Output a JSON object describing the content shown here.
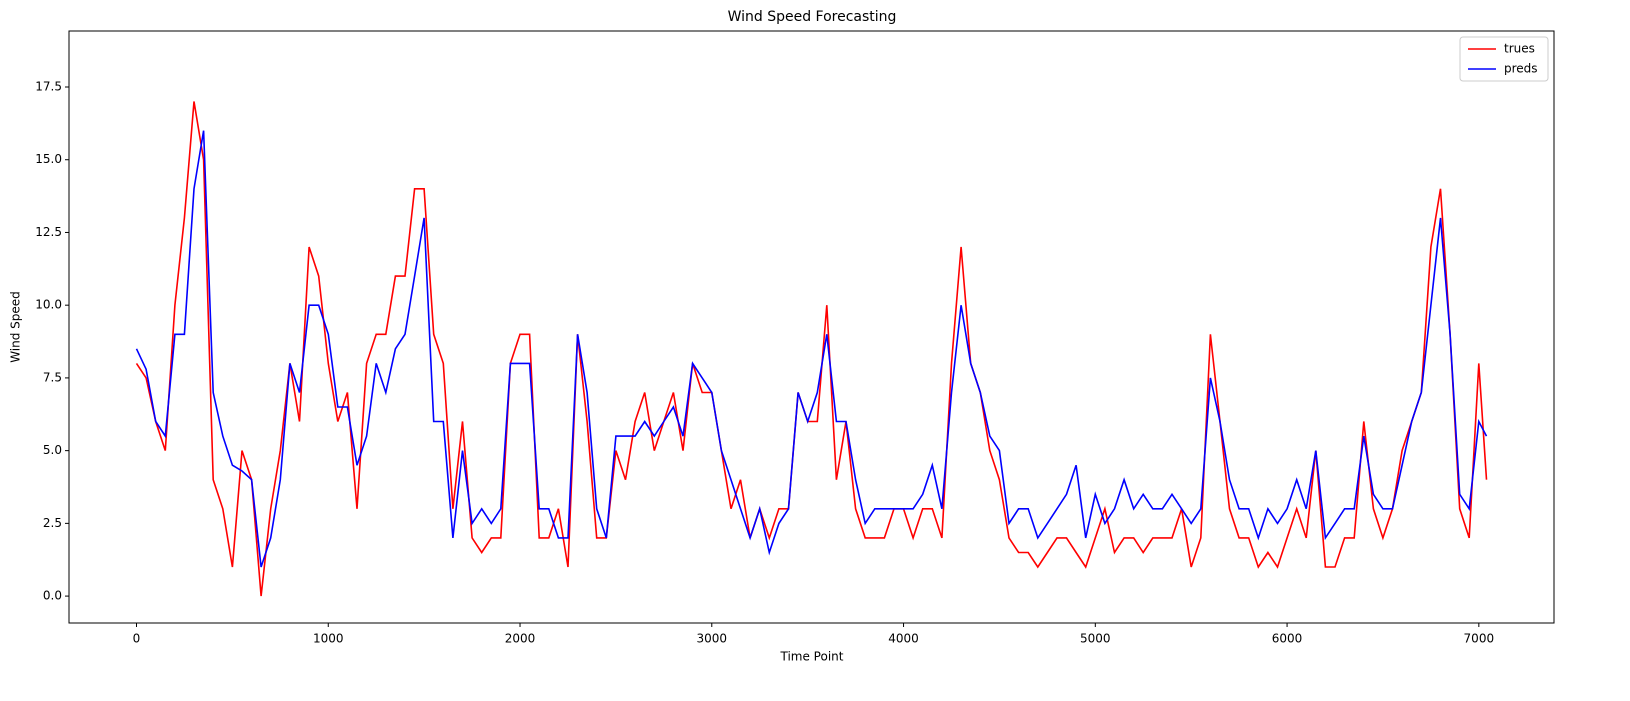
{
  "chart_data": {
    "type": "line",
    "title": "Wind Speed Forecasting",
    "xlabel": "Time Point",
    "ylabel": "Wind Speed",
    "x": [
      0,
      50,
      100,
      150,
      200,
      250,
      300,
      350,
      400,
      450,
      500,
      550,
      600,
      650,
      700,
      750,
      800,
      850,
      900,
      950,
      1000,
      1050,
      1100,
      1150,
      1200,
      1250,
      1300,
      1350,
      1400,
      1450,
      1500,
      1550,
      1600,
      1650,
      1700,
      1750,
      1800,
      1850,
      1900,
      1950,
      2000,
      2050,
      2100,
      2150,
      2200,
      2250,
      2300,
      2350,
      2400,
      2450,
      2500,
      2550,
      2600,
      2650,
      2700,
      2750,
      2800,
      2850,
      2900,
      2950,
      3000,
      3050,
      3100,
      3150,
      3200,
      3250,
      3300,
      3350,
      3400,
      3450,
      3500,
      3550,
      3600,
      3650,
      3700,
      3750,
      3800,
      3850,
      3900,
      3950,
      4000,
      4050,
      4100,
      4150,
      4200,
      4250,
      4300,
      4350,
      4400,
      4450,
      4500,
      4550,
      4600,
      4650,
      4700,
      4750,
      4800,
      4850,
      4900,
      4950,
      5000,
      5050,
      5100,
      5150,
      5200,
      5250,
      5300,
      5350,
      5400,
      5450,
      5500,
      5550,
      5600,
      5650,
      5700,
      5750,
      5800,
      5850,
      5900,
      5950,
      6000,
      6050,
      6100,
      6150,
      6200,
      6250,
      6300,
      6350,
      6400,
      6450,
      6500,
      6550,
      6600,
      6650,
      6700,
      6750,
      6800,
      6850,
      6900,
      6950,
      7000,
      7040
    ],
    "series": [
      {
        "name": "trues",
        "color": "#ff0000",
        "values": [
          8.0,
          7.5,
          6,
          5,
          10,
          13,
          17,
          15,
          4,
          3,
          1,
          5,
          4,
          0,
          3,
          5,
          8,
          6,
          12,
          11,
          8,
          6,
          7,
          3,
          8,
          9,
          9,
          11,
          11,
          14,
          14,
          9,
          8,
          3,
          6,
          2,
          1.5,
          2,
          2,
          8,
          9,
          9,
          2,
          2,
          3,
          1,
          9,
          6,
          2,
          2,
          5,
          4,
          6,
          7,
          5,
          6,
          7,
          5,
          8,
          7,
          7,
          5,
          3,
          4,
          2,
          3,
          2,
          3,
          3,
          7,
          6,
          6,
          10,
          4,
          6,
          3,
          2,
          2,
          2,
          3,
          3,
          2,
          3,
          3,
          2,
          8,
          12,
          8,
          7,
          5,
          4,
          2,
          1.5,
          1.5,
          1,
          1.5,
          2,
          2,
          1.5,
          1,
          2,
          3,
          1.5,
          2,
          2,
          1.5,
          2,
          2,
          2,
          3,
          1,
          2,
          9,
          6,
          3,
          2,
          2,
          1,
          1.5,
          1,
          2,
          3,
          2,
          5,
          1,
          1,
          2,
          2,
          6,
          3,
          2,
          3,
          5,
          6,
          7,
          12,
          14,
          9,
          3,
          2,
          8,
          4
        ]
      },
      {
        "name": "preds",
        "color": "#0000ff",
        "values": [
          8.5,
          7.8,
          6,
          5.5,
          9,
          9,
          14,
          16,
          7,
          5.5,
          4.5,
          4.3,
          4,
          1,
          2,
          4,
          8,
          7,
          10,
          10,
          9,
          6.5,
          6.5,
          4.5,
          5.5,
          8,
          7,
          8.5,
          9,
          11,
          13,
          6,
          6,
          2,
          5,
          2.5,
          3,
          2.5,
          3,
          8,
          8,
          8,
          3,
          3,
          2,
          2,
          9,
          7,
          3,
          2,
          5.5,
          5.5,
          5.5,
          6,
          5.5,
          6,
          6.5,
          5.5,
          8,
          7.5,
          7,
          5,
          4,
          3,
          2,
          3,
          1.5,
          2.5,
          3,
          7,
          6,
          7,
          9,
          6,
          6,
          4,
          2.5,
          3,
          3,
          3,
          3,
          3,
          3.5,
          4.5,
          3,
          7,
          10,
          8,
          7,
          5.5,
          5,
          2.5,
          3,
          3,
          2,
          2.5,
          3,
          3.5,
          4.5,
          2,
          3.5,
          2.5,
          3,
          4,
          3,
          3.5,
          3,
          3,
          3.5,
          3,
          2.5,
          3,
          7.5,
          6,
          4,
          3,
          3,
          2,
          3,
          2.5,
          3,
          4,
          3,
          5,
          2,
          2.5,
          3,
          3,
          5.5,
          3.5,
          3,
          3,
          4.5,
          6,
          7,
          10,
          13,
          9,
          3.5,
          3,
          6,
          5.5
        ]
      }
    ],
    "xlim": [
      -352,
      7392
    ],
    "ylim": [
      -0.925,
      19.425
    ],
    "xticks": [
      0,
      1000,
      2000,
      3000,
      4000,
      5000,
      6000,
      7000
    ],
    "yticks": [
      {
        "value": 0,
        "label": "0.0"
      },
      {
        "value": 2.5,
        "label": "2.5"
      },
      {
        "value": 5,
        "label": "5.0"
      },
      {
        "value": 7.5,
        "label": "7.5"
      },
      {
        "value": 10,
        "label": "10.0"
      },
      {
        "value": 12.5,
        "label": "12.5"
      },
      {
        "value": 15,
        "label": "15.0"
      },
      {
        "value": 17.5,
        "label": "17.5"
      }
    ],
    "legend": "upper right"
  }
}
